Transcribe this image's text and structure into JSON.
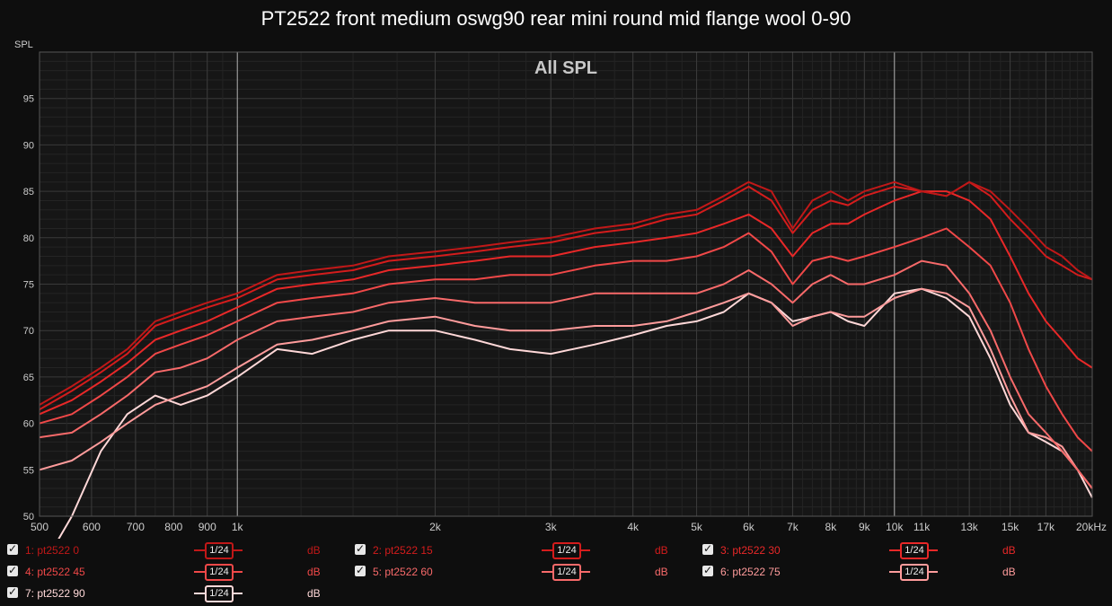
{
  "chart_data": {
    "type": "line",
    "title": "PT2522 front medium oswg90 rear mini round mid flange wool 0-90",
    "subtitle": "All SPL",
    "ylabel": "SPL",
    "xlabel": "",
    "x_scale": "log",
    "xlim": [
      500,
      20000
    ],
    "ylim": [
      50,
      100
    ],
    "y_ticks": [
      50,
      55,
      60,
      65,
      70,
      75,
      80,
      85,
      90,
      95
    ],
    "x_ticks": [
      {
        "v": 500,
        "label": "500"
      },
      {
        "v": 600,
        "label": "600"
      },
      {
        "v": 700,
        "label": "700"
      },
      {
        "v": 800,
        "label": "800"
      },
      {
        "v": 900,
        "label": "900"
      },
      {
        "v": 1000,
        "label": "1k"
      },
      {
        "v": 2000,
        "label": "2k"
      },
      {
        "v": 3000,
        "label": "3k"
      },
      {
        "v": 4000,
        "label": "4k"
      },
      {
        "v": 5000,
        "label": "5k"
      },
      {
        "v": 6000,
        "label": "6k"
      },
      {
        "v": 7000,
        "label": "7k"
      },
      {
        "v": 8000,
        "label": "8k"
      },
      {
        "v": 9000,
        "label": "9k"
      },
      {
        "v": 10000,
        "label": "10k"
      },
      {
        "v": 11000,
        "label": "11k"
      },
      {
        "v": 13000,
        "label": "13k"
      },
      {
        "v": 15000,
        "label": "15k"
      },
      {
        "v": 17000,
        "label": "17k"
      },
      {
        "v": 20000,
        "label": "20kHz"
      }
    ],
    "grid": true,
    "legend_position": "bottom",
    "series": [
      {
        "name": "1: pt2522 0",
        "color": "#c01818",
        "x": [
          500,
          560,
          620,
          680,
          750,
          820,
          900,
          1000,
          1150,
          1300,
          1500,
          1700,
          2000,
          2300,
          2600,
          3000,
          3500,
          4000,
          4500,
          5000,
          5500,
          6000,
          6500,
          7000,
          7500,
          8000,
          8500,
          9000,
          10000,
          11000,
          12000,
          13000,
          14000,
          15000,
          16000,
          17000,
          18000,
          19000,
          20000
        ],
        "y": [
          62,
          64,
          66,
          68,
          71,
          72,
          73,
          74,
          76,
          76.5,
          77,
          78,
          78.5,
          79,
          79.5,
          80,
          81,
          81.5,
          82.5,
          83,
          84.5,
          86,
          85,
          81,
          84,
          85,
          84,
          85,
          86,
          85,
          84.5,
          86,
          85,
          83,
          81,
          79,
          78,
          76.5,
          75.5
        ]
      },
      {
        "name": "2: pt2522 15",
        "color": "#d41c1c",
        "x": [
          500,
          560,
          620,
          680,
          750,
          820,
          900,
          1000,
          1150,
          1300,
          1500,
          1700,
          2000,
          2300,
          2600,
          3000,
          3500,
          4000,
          4500,
          5000,
          5500,
          6000,
          6500,
          7000,
          7500,
          8000,
          8500,
          9000,
          10000,
          11000,
          12000,
          13000,
          14000,
          15000,
          16000,
          17000,
          18000,
          19000,
          20000
        ],
        "y": [
          61.5,
          63.5,
          65.5,
          67.5,
          70.5,
          71.5,
          72.5,
          73.5,
          75.5,
          76,
          76.5,
          77.5,
          78,
          78.5,
          79,
          79.5,
          80.5,
          81,
          82,
          82.5,
          84,
          85.5,
          84,
          80.5,
          83,
          84,
          83.5,
          84.5,
          85.5,
          85,
          84.5,
          86,
          84.5,
          82,
          80,
          78,
          77,
          76,
          75.5
        ]
      },
      {
        "name": "3: pt2522 30",
        "color": "#e82828",
        "x": [
          500,
          560,
          620,
          680,
          750,
          820,
          900,
          1000,
          1150,
          1300,
          1500,
          1700,
          2000,
          2300,
          2600,
          3000,
          3500,
          4000,
          4500,
          5000,
          5500,
          6000,
          6500,
          7000,
          7500,
          8000,
          8500,
          9000,
          10000,
          11000,
          12000,
          13000,
          14000,
          15000,
          16000,
          17000,
          18000,
          19000,
          20000
        ],
        "y": [
          61,
          62.5,
          64.5,
          66.5,
          69,
          70,
          71,
          72.5,
          74.5,
          75,
          75.5,
          76.5,
          77,
          77.5,
          78,
          78,
          79,
          79.5,
          80,
          80.5,
          81.5,
          82.5,
          81,
          78,
          80.5,
          81.5,
          81.5,
          82.5,
          84,
          85,
          85,
          84,
          82,
          78,
          74,
          71,
          69,
          67,
          66
        ]
      },
      {
        "name": "4: pt2522 45",
        "color": "#f04848",
        "x": [
          500,
          560,
          620,
          680,
          750,
          820,
          900,
          1000,
          1150,
          1300,
          1500,
          1700,
          2000,
          2300,
          2600,
          3000,
          3500,
          4000,
          4500,
          5000,
          5500,
          6000,
          6500,
          7000,
          7500,
          8000,
          8500,
          9000,
          10000,
          11000,
          12000,
          13000,
          14000,
          15000,
          16000,
          17000,
          18000,
          19000,
          20000
        ],
        "y": [
          60,
          61,
          63,
          65,
          67.5,
          68.5,
          69.5,
          71,
          73,
          73.5,
          74,
          75,
          75.5,
          75.5,
          76,
          76,
          77,
          77.5,
          77.5,
          78,
          79,
          80.5,
          78.5,
          75,
          77.5,
          78,
          77.5,
          78,
          79,
          80,
          81,
          79,
          77,
          73,
          68,
          64,
          61,
          58.5,
          57
        ]
      },
      {
        "name": "5: pt2522 60",
        "color": "#f86a6a",
        "x": [
          500,
          560,
          620,
          680,
          750,
          820,
          900,
          1000,
          1150,
          1300,
          1500,
          1700,
          2000,
          2300,
          2600,
          3000,
          3500,
          4000,
          4500,
          5000,
          5500,
          6000,
          6500,
          7000,
          7500,
          8000,
          8500,
          9000,
          10000,
          11000,
          12000,
          13000,
          14000,
          15000,
          16000,
          17000,
          18000,
          19000,
          20000
        ],
        "y": [
          58.5,
          59,
          61,
          63,
          65.5,
          66,
          67,
          69,
          71,
          71.5,
          72,
          73,
          73.5,
          73,
          73,
          73,
          74,
          74,
          74,
          74,
          75,
          76.5,
          75,
          73,
          75,
          76,
          75,
          75,
          76,
          77.5,
          77,
          74,
          70,
          65,
          61,
          59,
          57,
          55,
          53
        ]
      },
      {
        "name": "6: pt2522 75",
        "color": "#ff9c9c",
        "x": [
          500,
          560,
          620,
          680,
          750,
          820,
          900,
          1000,
          1150,
          1300,
          1500,
          1700,
          2000,
          2300,
          2600,
          3000,
          3500,
          4000,
          4500,
          5000,
          5500,
          6000,
          6500,
          7000,
          7500,
          8000,
          8500,
          9000,
          10000,
          11000,
          12000,
          13000,
          14000,
          15000,
          16000,
          17000,
          18000,
          19000,
          20000
        ],
        "y": [
          55,
          56,
          58,
          60,
          62,
          63,
          64,
          66,
          68.5,
          69,
          70,
          71,
          71.5,
          70.5,
          70,
          70,
          70.5,
          70.5,
          71,
          72,
          73,
          74,
          73,
          70.5,
          71.5,
          72,
          71.5,
          71.5,
          73.5,
          74.5,
          74,
          72.5,
          68,
          63,
          59,
          58.5,
          57.5,
          55,
          53
        ]
      },
      {
        "name": "7: pt2522 90",
        "color": "#ffd8d8",
        "x": [
          500,
          560,
          620,
          680,
          750,
          820,
          900,
          1000,
          1150,
          1300,
          1500,
          1700,
          2000,
          2300,
          2600,
          3000,
          3500,
          4000,
          4500,
          5000,
          5500,
          6000,
          6500,
          7000,
          7500,
          8000,
          8500,
          9000,
          10000,
          11000,
          12000,
          13000,
          14000,
          15000,
          16000,
          17000,
          18000,
          19000,
          20000
        ],
        "y": [
          44,
          50,
          57,
          61,
          63,
          62,
          63,
          65,
          68,
          67.5,
          69,
          70,
          70,
          69,
          68,
          67.5,
          68.5,
          69.5,
          70.5,
          71,
          72,
          74,
          73,
          71,
          71.5,
          72,
          71,
          70.5,
          74,
          74.5,
          73.5,
          71.5,
          67,
          62,
          59,
          58,
          57,
          55,
          52
        ]
      }
    ]
  },
  "legend": [
    {
      "label": "1: pt2522 0",
      "smoothing": "1/24",
      "unit": "dB",
      "color": "#c01818"
    },
    {
      "label": "2: pt2522 15",
      "smoothing": "1/24",
      "unit": "dB",
      "color": "#d41c1c"
    },
    {
      "label": "3: pt2522 30",
      "smoothing": "1/24",
      "unit": "dB",
      "color": "#e82828"
    },
    {
      "label": "4: pt2522 45",
      "smoothing": "1/24",
      "unit": "dB",
      "color": "#f04848"
    },
    {
      "label": "5: pt2522 60",
      "smoothing": "1/24",
      "unit": "dB",
      "color": "#f86a6a"
    },
    {
      "label": "6: pt2522 75",
      "smoothing": "1/24",
      "unit": "dB",
      "color": "#ff9c9c"
    },
    {
      "label": "7: pt2522 90",
      "smoothing": "1/24",
      "unit": "dB",
      "color": "#ffd8d8"
    }
  ]
}
